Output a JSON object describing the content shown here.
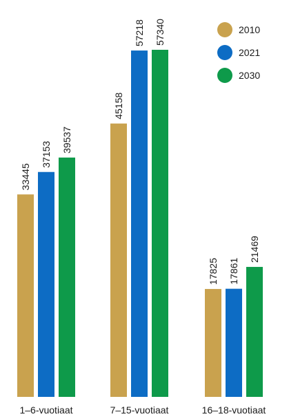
{
  "chart_data": {
    "type": "bar",
    "categories": [
      "1–6-vuotiaat",
      "7–15-vuotiaat",
      "16–18-vuotiaat"
    ],
    "series": [
      {
        "name": "2010",
        "values": [
          33445,
          45158,
          17825
        ],
        "color": "#C9A24E"
      },
      {
        "name": "2021",
        "values": [
          37153,
          57218,
          17861
        ],
        "color": "#0D6CC4"
      },
      {
        "name": "2030",
        "values": [
          39537,
          57340,
          21469
        ],
        "color": "#0E9A4A"
      }
    ],
    "title": "",
    "xlabel": "",
    "ylabel": "",
    "ylim": [
      0,
      57340
    ],
    "grid": false,
    "legend_position": "top-right",
    "data_labels": true
  }
}
